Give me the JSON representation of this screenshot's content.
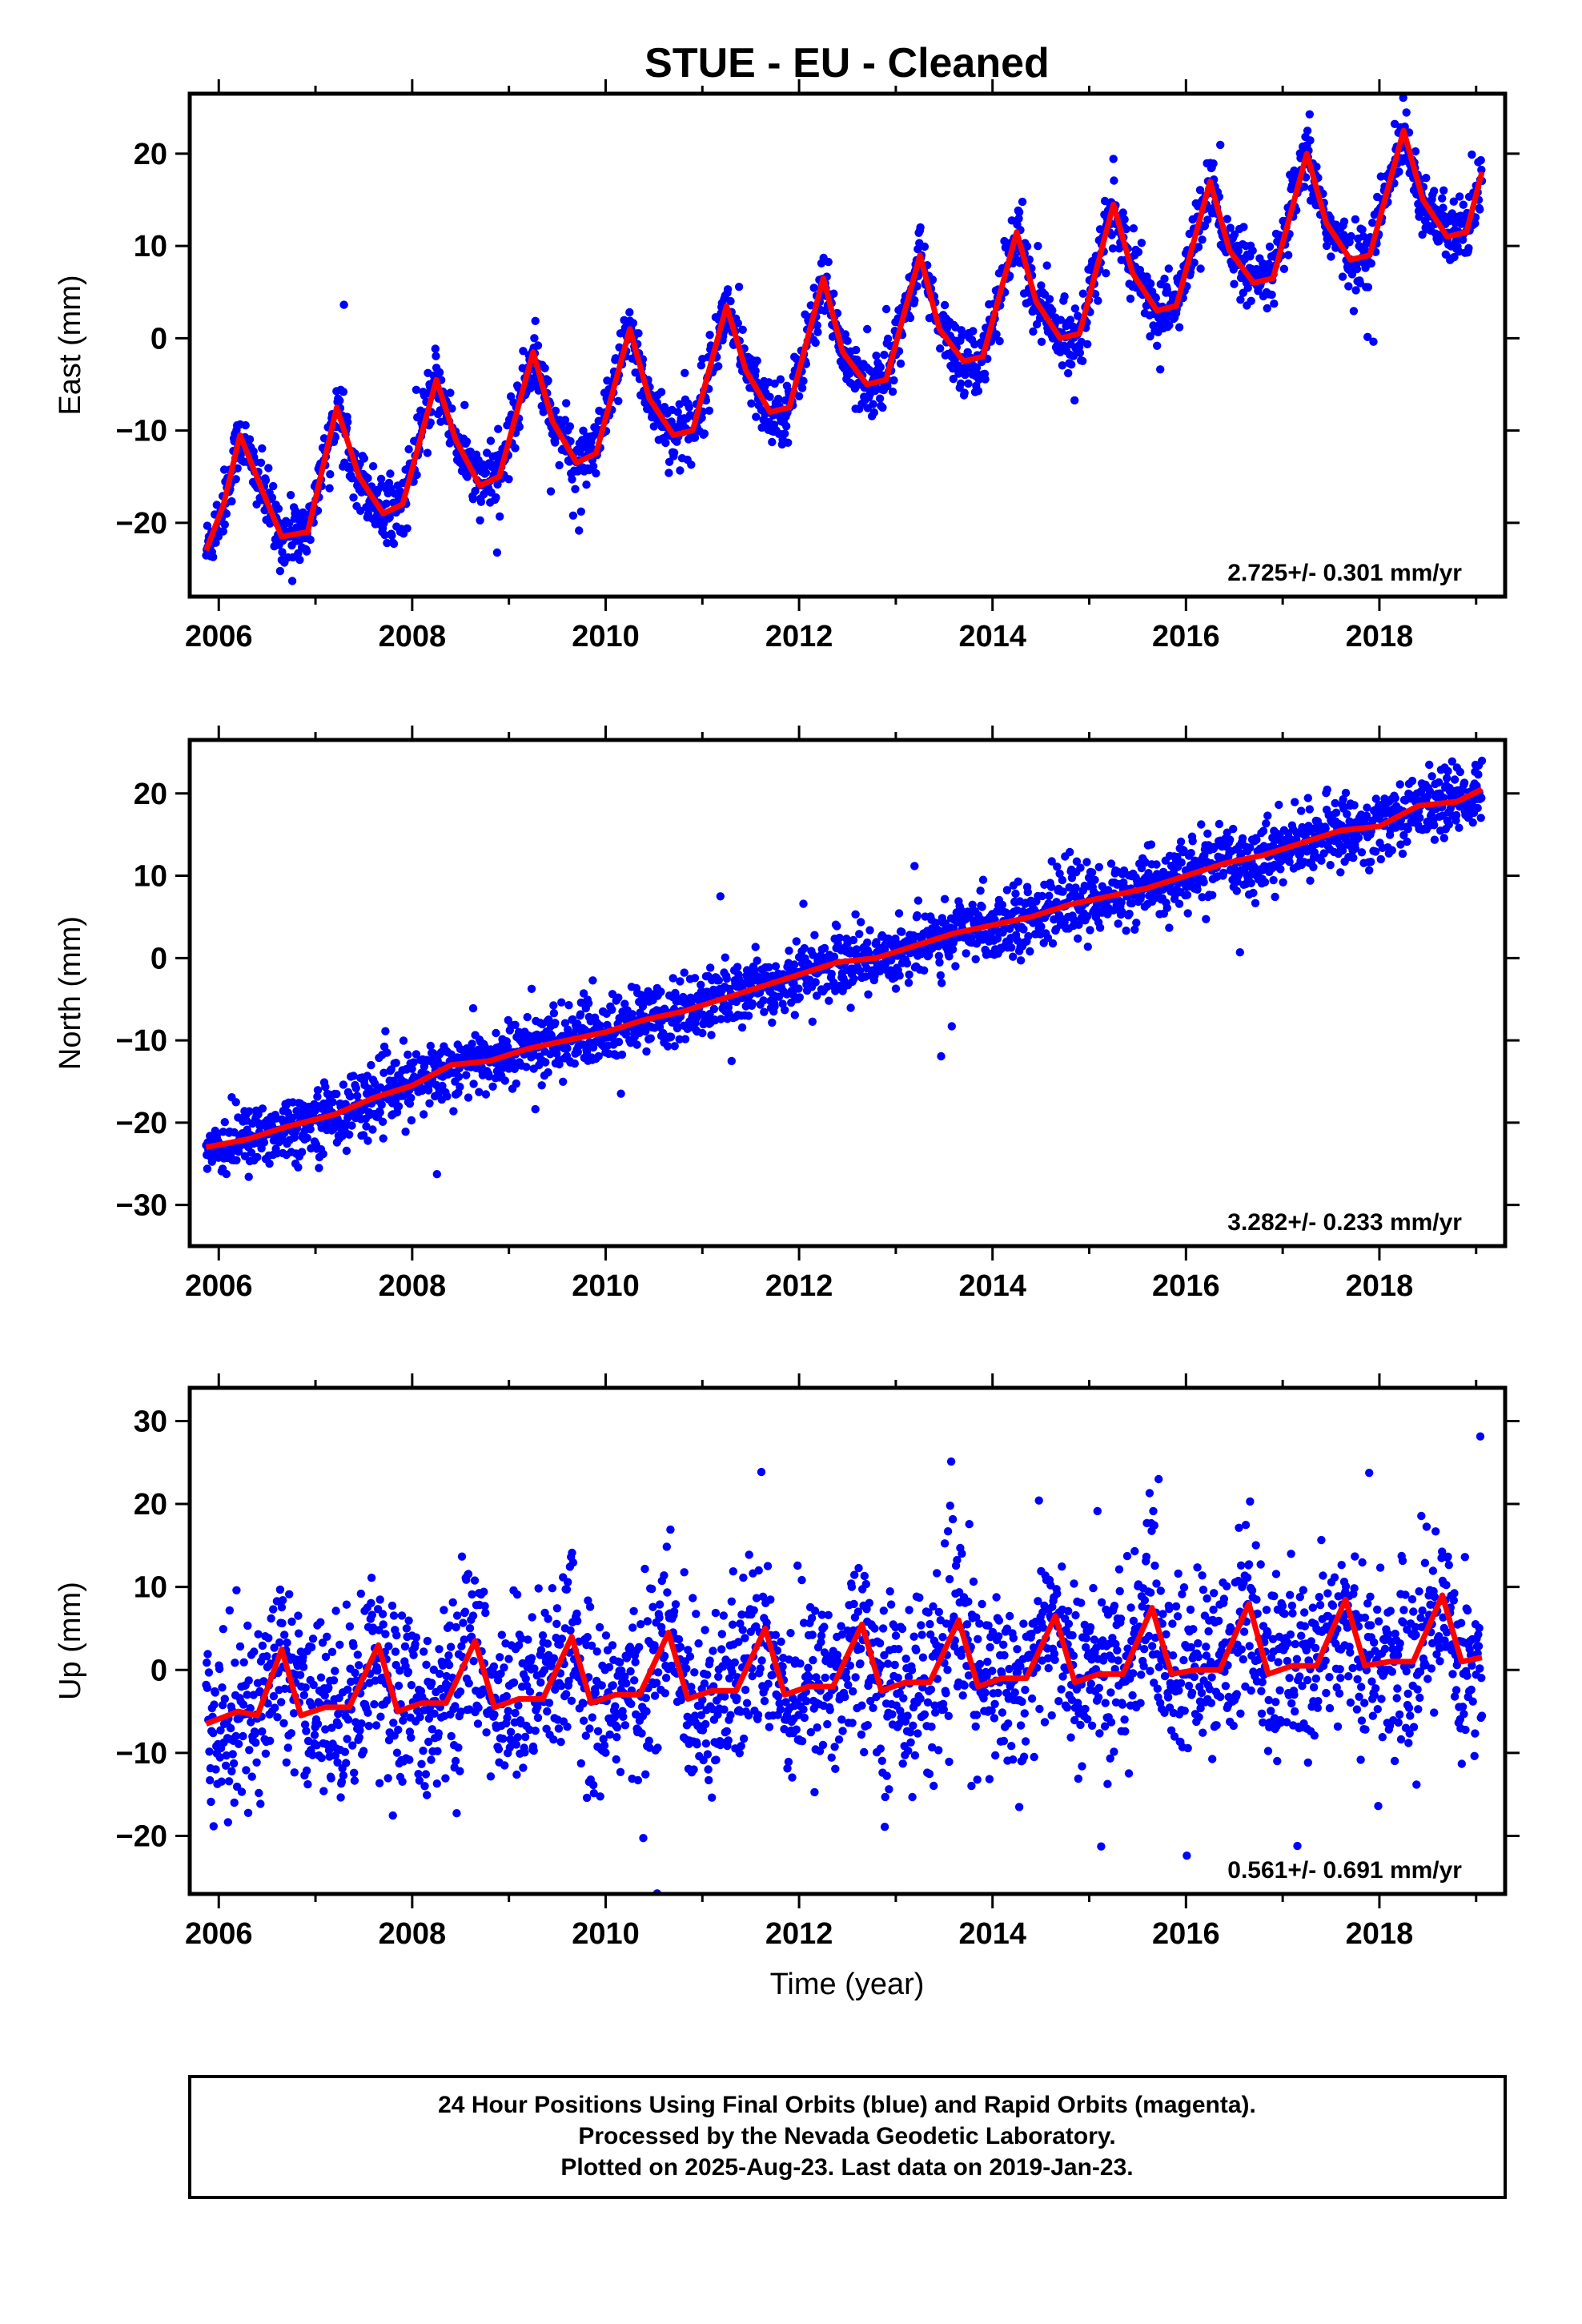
{
  "title": "STUE  - EU - Cleaned",
  "xlabel": "Time (year)",
  "caption": [
    "24 Hour Positions Using Final Orbits (blue) and Rapid Orbits (magenta).",
    "Processed by the Nevada Geodetic Laboratory.",
    "Plotted on 2025-Aug-23. Last data on 2019-Jan-23."
  ],
  "colors": {
    "final_orbits": "#0000ff",
    "fit": "#ff0000",
    "frame": "#000000"
  },
  "chart_data": [
    {
      "type": "scatter",
      "component": "east",
      "ylabel": "East (mm)",
      "rate_label": "2.725+/- 0.301 mm/yr",
      "xlim": [
        2005.7,
        2019.3
      ],
      "ylim": [
        -28,
        26.5
      ],
      "xticks": [
        2006,
        2008,
        2010,
        2012,
        2014,
        2016,
        2018
      ],
      "yticks": [
        -20,
        -10,
        0,
        10,
        20
      ],
      "series": [
        {
          "name": "Final Orbits",
          "style": "points",
          "x_range": [
            2005.87,
            2019.06
          ],
          "seasonal_amplitude": 5.5,
          "noise": 1.7
        },
        {
          "name": "fit",
          "style": "line",
          "points": [
            [
              2005.87,
              -23
            ],
            [
              2006.05,
              -18
            ],
            [
              2006.22,
              -10.5
            ],
            [
              2006.45,
              -16.5
            ],
            [
              2006.65,
              -21.5
            ],
            [
              2006.92,
              -21
            ],
            [
              2007.22,
              -7.5
            ],
            [
              2007.45,
              -15
            ],
            [
              2007.7,
              -19
            ],
            [
              2007.9,
              -18
            ],
            [
              2008.25,
              -4.5
            ],
            [
              2008.45,
              -11
            ],
            [
              2008.7,
              -16
            ],
            [
              2008.9,
              -15
            ],
            [
              2009.25,
              -1.5
            ],
            [
              2009.45,
              -9
            ],
            [
              2009.7,
              -13.5
            ],
            [
              2009.9,
              -12.5
            ],
            [
              2010.25,
              1
            ],
            [
              2010.45,
              -6.5
            ],
            [
              2010.7,
              -10.5
            ],
            [
              2010.9,
              -10
            ],
            [
              2011.25,
              3.5
            ],
            [
              2011.45,
              -3.5
            ],
            [
              2011.7,
              -8
            ],
            [
              2011.9,
              -7.5
            ],
            [
              2012.25,
              6.5
            ],
            [
              2012.45,
              -1.5
            ],
            [
              2012.7,
              -5
            ],
            [
              2012.9,
              -4.5
            ],
            [
              2013.25,
              9
            ],
            [
              2013.45,
              1
            ],
            [
              2013.7,
              -2.5
            ],
            [
              2013.9,
              -2
            ],
            [
              2014.25,
              11.5
            ],
            [
              2014.45,
              4
            ],
            [
              2014.7,
              0
            ],
            [
              2014.9,
              0.5
            ],
            [
              2015.25,
              14.5
            ],
            [
              2015.45,
              7
            ],
            [
              2015.7,
              3
            ],
            [
              2015.9,
              3.5
            ],
            [
              2016.25,
              17
            ],
            [
              2016.45,
              9.5
            ],
            [
              2016.7,
              6
            ],
            [
              2016.9,
              6.5
            ],
            [
              2017.25,
              20
            ],
            [
              2017.45,
              12.5
            ],
            [
              2017.7,
              8.5
            ],
            [
              2017.9,
              9
            ],
            [
              2018.25,
              22.5
            ],
            [
              2018.45,
              15
            ],
            [
              2018.7,
              11
            ],
            [
              2018.9,
              11.5
            ],
            [
              2019.06,
              18
            ]
          ]
        }
      ]
    },
    {
      "type": "scatter",
      "component": "north",
      "ylabel": "North (mm)",
      "rate_label": "3.282+/- 0.233 mm/yr",
      "xlim": [
        2005.7,
        2019.3
      ],
      "ylim": [
        -35,
        26.5
      ],
      "xticks": [
        2006,
        2008,
        2010,
        2012,
        2014,
        2016,
        2018
      ],
      "yticks": [
        -30,
        -20,
        -10,
        0,
        10,
        20
      ],
      "series": [
        {
          "name": "Final Orbits",
          "style": "points",
          "x_range": [
            2005.87,
            2019.06
          ],
          "seasonal_amplitude": 1.2,
          "noise": 2.0
        },
        {
          "name": "fit",
          "style": "line",
          "points": [
            [
              2005.87,
              -23
            ],
            [
              2006.3,
              -22
            ],
            [
              2006.7,
              -20.5
            ],
            [
              2007.2,
              -19
            ],
            [
              2007.6,
              -17
            ],
            [
              2008.0,
              -15.5
            ],
            [
              2008.4,
              -13
            ],
            [
              2008.8,
              -12.5
            ],
            [
              2009.2,
              -11
            ],
            [
              2009.6,
              -10
            ],
            [
              2010.0,
              -9
            ],
            [
              2010.4,
              -7.5
            ],
            [
              2010.8,
              -6.5
            ],
            [
              2011.2,
              -5
            ],
            [
              2011.6,
              -3.5
            ],
            [
              2012.0,
              -2
            ],
            [
              2012.4,
              -0.5
            ],
            [
              2012.8,
              0
            ],
            [
              2013.2,
              1.5
            ],
            [
              2013.6,
              3
            ],
            [
              2014.0,
              4
            ],
            [
              2014.4,
              5
            ],
            [
              2014.8,
              6.5
            ],
            [
              2015.2,
              7.5
            ],
            [
              2015.6,
              8.5
            ],
            [
              2016.0,
              10
            ],
            [
              2016.4,
              11.5
            ],
            [
              2016.8,
              12.5
            ],
            [
              2017.2,
              14
            ],
            [
              2017.6,
              15.5
            ],
            [
              2018.0,
              16
            ],
            [
              2018.4,
              18.5
            ],
            [
              2018.8,
              19
            ],
            [
              2019.06,
              20.5
            ]
          ]
        }
      ]
    },
    {
      "type": "scatter",
      "component": "up",
      "ylabel": "Up (mm)",
      "rate_label": "0.561+/- 0.691 mm/yr",
      "xlim": [
        2005.7,
        2019.3
      ],
      "ylim": [
        -27,
        34
      ],
      "xticks": [
        2006,
        2008,
        2010,
        2012,
        2014,
        2016,
        2018
      ],
      "yticks": [
        -20,
        -10,
        0,
        10,
        20,
        30
      ],
      "series": [
        {
          "name": "Final Orbits",
          "style": "points",
          "x_range": [
            2005.87,
            2019.06
          ],
          "seasonal_amplitude": 4.5,
          "noise": 5.5
        },
        {
          "name": "fit",
          "style": "line",
          "points": [
            [
              2005.87,
              -6.5
            ],
            [
              2006.2,
              -5
            ],
            [
              2006.4,
              -5.5
            ],
            [
              2006.65,
              2.5
            ],
            [
              2006.85,
              -5.5
            ],
            [
              2007.1,
              -4.5
            ],
            [
              2007.35,
              -4.5
            ],
            [
              2007.65,
              3
            ],
            [
              2007.85,
              -5
            ],
            [
              2008.1,
              -4
            ],
            [
              2008.35,
              -4
            ],
            [
              2008.65,
              3.5
            ],
            [
              2008.85,
              -4.5
            ],
            [
              2009.1,
              -3.5
            ],
            [
              2009.35,
              -3.5
            ],
            [
              2009.65,
              4
            ],
            [
              2009.85,
              -4
            ],
            [
              2010.1,
              -3
            ],
            [
              2010.35,
              -3
            ],
            [
              2010.65,
              4.5
            ],
            [
              2010.85,
              -3.5
            ],
            [
              2011.1,
              -2.5
            ],
            [
              2011.35,
              -2.5
            ],
            [
              2011.65,
              5
            ],
            [
              2011.85,
              -3
            ],
            [
              2012.1,
              -2
            ],
            [
              2012.35,
              -2
            ],
            [
              2012.65,
              5.5
            ],
            [
              2012.85,
              -2.5
            ],
            [
              2013.1,
              -1.5
            ],
            [
              2013.35,
              -1.5
            ],
            [
              2013.65,
              6
            ],
            [
              2013.85,
              -2
            ],
            [
              2014.1,
              -1
            ],
            [
              2014.35,
              -1
            ],
            [
              2014.65,
              6.5
            ],
            [
              2014.85,
              -1.5
            ],
            [
              2015.1,
              -0.5
            ],
            [
              2015.35,
              -0.5
            ],
            [
              2015.65,
              7.5
            ],
            [
              2015.85,
              -0.5
            ],
            [
              2016.1,
              0
            ],
            [
              2016.35,
              0
            ],
            [
              2016.65,
              8
            ],
            [
              2016.85,
              -0.5
            ],
            [
              2017.1,
              0.5
            ],
            [
              2017.35,
              0.5
            ],
            [
              2017.65,
              8.5
            ],
            [
              2017.85,
              0.5
            ],
            [
              2018.1,
              1
            ],
            [
              2018.35,
              1
            ],
            [
              2018.65,
              9
            ],
            [
              2018.85,
              1
            ],
            [
              2019.06,
              1.5
            ]
          ]
        }
      ]
    }
  ]
}
